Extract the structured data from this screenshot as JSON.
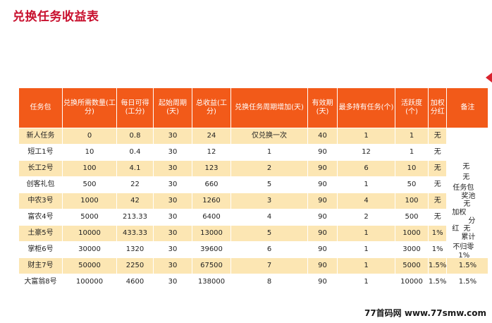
{
  "title": "兑换任务收益表",
  "headers": [
    "任务包",
    "兑换所需数量(工分)",
    "每日可得(工分)",
    "起始周期(天)",
    "总收益(工分)",
    "兑换任务周期增加(天)",
    "有效期(天)",
    "最多持有任务(个)",
    "活跃度(个)",
    "加权分红",
    "备注"
  ],
  "rows": [
    [
      "新人任务",
      "0",
      "0.8",
      "30",
      "24",
      "仅兑换一次",
      "40",
      "1",
      "1",
      "无"
    ],
    [
      "短工1号",
      "10",
      "0.4",
      "30",
      "12",
      "1",
      "90",
      "12",
      "1",
      "无"
    ],
    [
      "长工2号",
      "100",
      "4.1",
      "30",
      "123",
      "2",
      "90",
      "6",
      "10",
      "无"
    ],
    [
      "创客礼包",
      "500",
      "22",
      "30",
      "660",
      "5",
      "90",
      "1",
      "50",
      "无"
    ],
    [
      "中农3号",
      "1000",
      "42",
      "30",
      "1260",
      "3",
      "90",
      "4",
      "100",
      "无"
    ],
    [
      "富农4号",
      "5000",
      "213.33",
      "30",
      "6400",
      "4",
      "90",
      "2",
      "500",
      "无"
    ],
    [
      "土豪5号",
      "10000",
      "433.33",
      "30",
      "13000",
      "5",
      "90",
      "1",
      "1000",
      "1%"
    ],
    [
      "掌柜6号",
      "30000",
      "1320",
      "30",
      "39600",
      "6",
      "90",
      "1",
      "3000",
      "1%"
    ],
    [
      "财主7号",
      "50000",
      "2250",
      "30",
      "67500",
      "7",
      "90",
      "1",
      "5000",
      "1.5%"
    ],
    [
      "大富翁8号",
      "100000",
      "4600",
      "30",
      "138000",
      "8",
      "90",
      "1",
      "10000",
      "1.5%"
    ]
  ],
  "remarks_merged": [
    "无",
    "无",
    "任务包",
    "奖池",
    "无",
    "加权",
    "分",
    "红",
    "无",
    "累计",
    "不归零",
    "1%"
  ],
  "remarks_last": [
    "1.5%",
    "1.5%"
  ],
  "watermark": "77首码网 www.77smw.com"
}
